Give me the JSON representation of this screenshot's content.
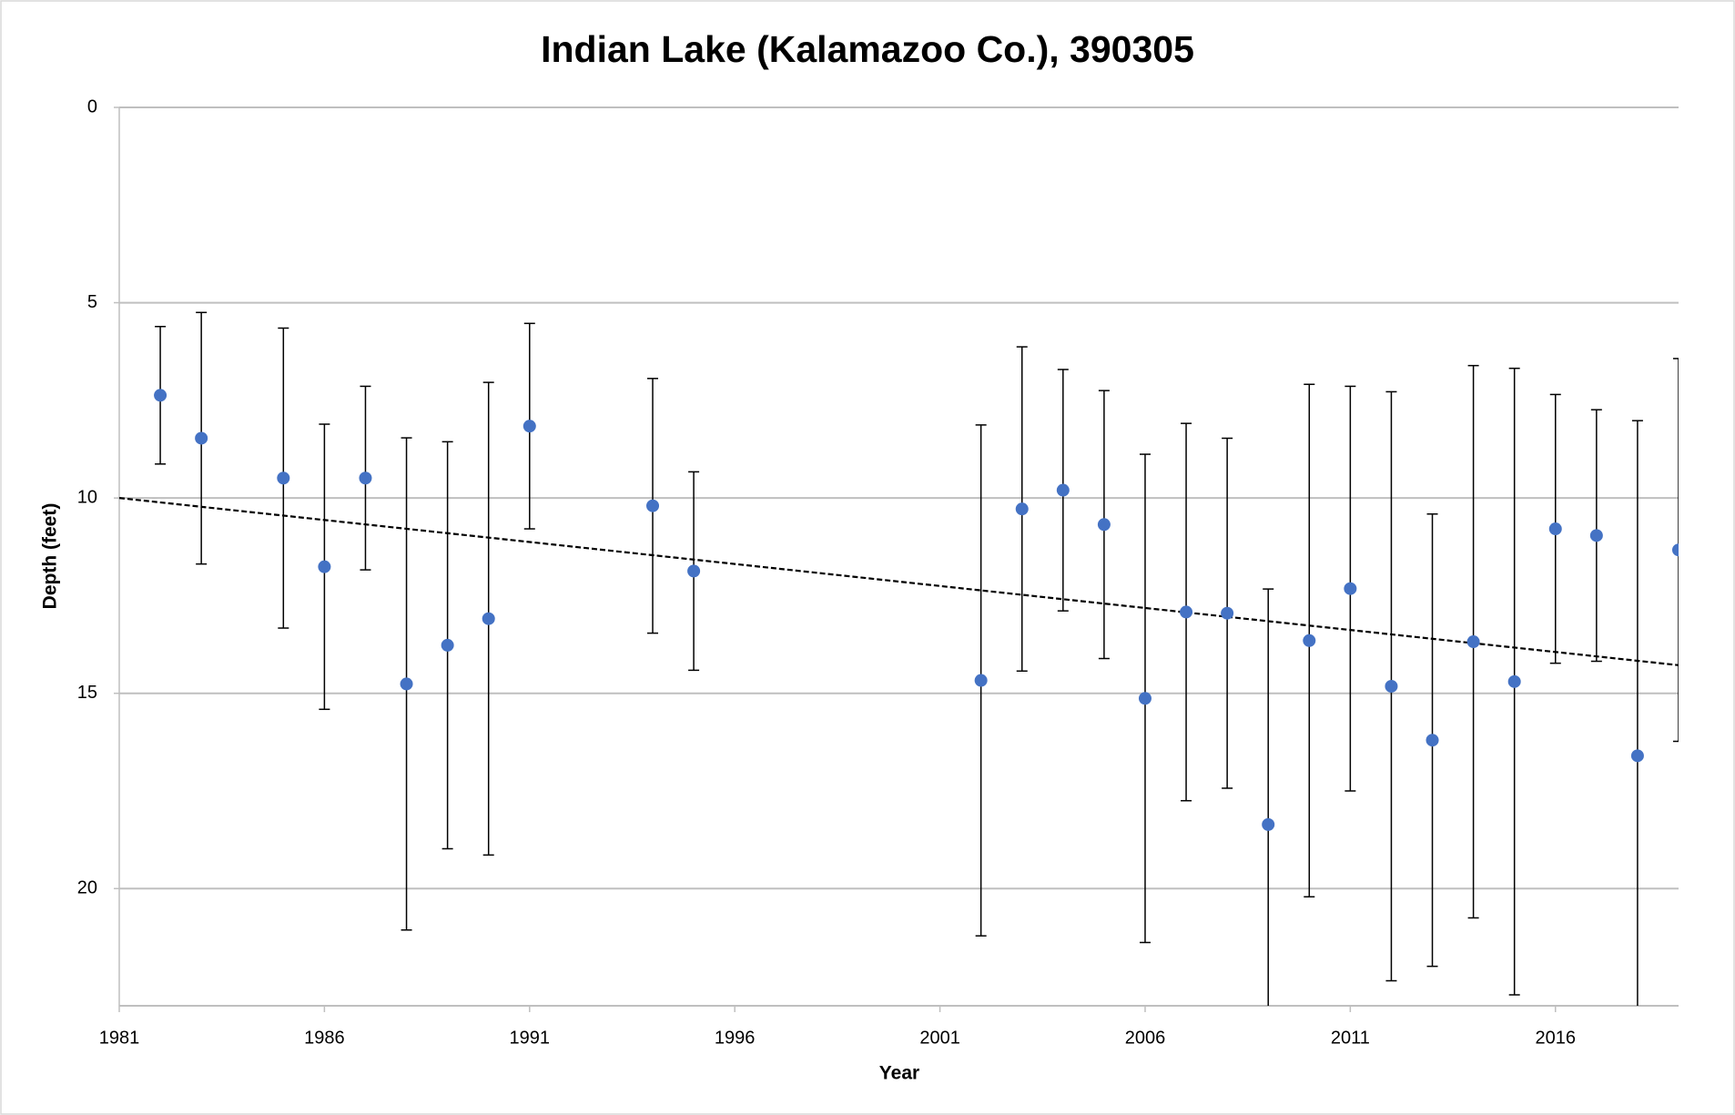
{
  "chart_data": {
    "type": "scatter",
    "title": "Indian Lake (Kalamazoo Co.), 390305",
    "x_label": "Year",
    "y_label": "Depth (feet)",
    "x": [
      1982,
      1983,
      1985,
      1986,
      1987,
      1988,
      1989,
      1990,
      1991,
      1994,
      1995,
      2002,
      2003,
      2004,
      2005,
      2006,
      2007,
      2008,
      2009,
      2010,
      2011,
      2012,
      2013,
      2014,
      2015,
      2016,
      2017,
      2018,
      2019
    ],
    "values": [
      7.37,
      8.47,
      9.49,
      11.76,
      9.49,
      14.76,
      13.77,
      13.09,
      8.16,
      10.2,
      11.87,
      14.67,
      10.28,
      9.8,
      10.68,
      15.13,
      12.92,
      12.95,
      18.36,
      13.65,
      12.32,
      14.82,
      16.2,
      13.68,
      14.7,
      10.79,
      10.96,
      16.6,
      11.33
    ],
    "errors": [
      1.76,
      3.22,
      3.84,
      3.65,
      2.35,
      6.3,
      5.21,
      6.05,
      2.63,
      3.26,
      2.54,
      6.54,
      4.15,
      3.09,
      3.43,
      6.25,
      4.83,
      4.48,
      6.03,
      6.56,
      5.18,
      7.54,
      5.79,
      7.07,
      8.02,
      3.44,
      3.22,
      8.58,
      4.9
    ],
    "color": "#4472c4",
    "error_color": "#000000",
    "trend": {
      "x": [
        1981,
        2019
      ],
      "values": [
        10.0,
        14.28
      ],
      "color": "#000000"
    },
    "xlim": [
      1981,
      2019
    ],
    "xticks": [
      1981,
      1986,
      1991,
      1996,
      2001,
      2006,
      2011,
      2016
    ],
    "ylim": [
      0,
      23
    ],
    "yticks": [
      0,
      5,
      10,
      15,
      20
    ],
    "y_reversed": true,
    "grid": true
  }
}
